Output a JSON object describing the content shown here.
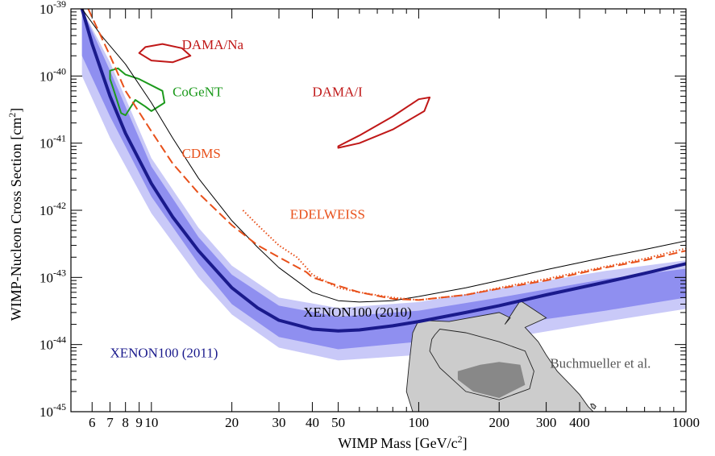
{
  "chart_data": {
    "type": "line",
    "xscale": "log",
    "yscale": "log",
    "xlim": [
      5,
      1000
    ],
    "ylim": [
      1e-45,
      1e-39
    ],
    "xlabel": {
      "main": "WIMP Mass [GeV/c",
      "sup": "2",
      "end": "]"
    },
    "ylabel": {
      "main": "WIMP-Nucleon Cross Section [cm",
      "sup": "2",
      "end": "]"
    },
    "x_ticks": [
      {
        "value": 6,
        "label": "6"
      },
      {
        "value": 7,
        "label": "7"
      },
      {
        "value": 8,
        "label": "8"
      },
      {
        "value": 9,
        "label": "9"
      },
      {
        "value": 10,
        "label": "10"
      },
      {
        "value": 20,
        "label": "20"
      },
      {
        "value": 30,
        "label": "30"
      },
      {
        "value": 40,
        "label": "40"
      },
      {
        "value": 50,
        "label": "50"
      },
      {
        "value": 100,
        "label": "100"
      },
      {
        "value": 200,
        "label": "200"
      },
      {
        "value": 300,
        "label": "300"
      },
      {
        "value": 400,
        "label": "400"
      },
      {
        "value": 1000,
        "label": "1000"
      }
    ],
    "y_ticks": [
      {
        "value": 1e-45,
        "base": "10",
        "exp": "-45"
      },
      {
        "value": 1e-44,
        "base": "10",
        "exp": "-44"
      },
      {
        "value": 1e-43,
        "base": "10",
        "exp": "-43"
      },
      {
        "value": 1e-42,
        "base": "10",
        "exp": "-42"
      },
      {
        "value": 1e-41,
        "base": "10",
        "exp": "-41"
      },
      {
        "value": 1e-40,
        "base": "10",
        "exp": "-40"
      },
      {
        "value": 1e-39,
        "base": "10",
        "exp": "-39"
      }
    ],
    "colors": {
      "xenon2011": "#1a1a8c",
      "band_1sigma": "#8f8ff0",
      "band_2sigma": "#c9c9f8",
      "xenon2010": "#000000",
      "cdms": "#e8501a",
      "edelweiss": "#e8501a",
      "dama": "#c01818",
      "cogent": "#1c9a1c",
      "buchmueller_light": "#cccccc",
      "buchmueller_dark": "#888888"
    },
    "series": [
      {
        "name": "XENON100 (2011)",
        "style": "thick-line",
        "points": [
          [
            5.5,
            1e-39
          ],
          [
            6,
            3e-40
          ],
          [
            7,
            5e-41
          ],
          [
            8,
            1.4e-41
          ],
          [
            10,
            2.5e-42
          ],
          [
            12,
            8e-43
          ],
          [
            15,
            2.5e-43
          ],
          [
            20,
            7e-44
          ],
          [
            25,
            3.5e-44
          ],
          [
            30,
            2.3e-44
          ],
          [
            40,
            1.7e-44
          ],
          [
            50,
            1.6e-44
          ],
          [
            60,
            1.65e-44
          ],
          [
            80,
            1.9e-44
          ],
          [
            100,
            2.2e-44
          ],
          [
            150,
            3e-44
          ],
          [
            200,
            3.8e-44
          ],
          [
            300,
            5.5e-44
          ],
          [
            500,
            8.5e-44
          ],
          [
            700,
            1.15e-43
          ],
          [
            1000,
            1.6e-43
          ]
        ]
      },
      {
        "name": "XENON100 (2010)",
        "style": "thin-line",
        "points": [
          [
            5.5,
            1e-39
          ],
          [
            6.5,
            4e-40
          ],
          [
            8,
            1.5e-40
          ],
          [
            10,
            4e-41
          ],
          [
            12,
            1.2e-41
          ],
          [
            15,
            3e-42
          ],
          [
            20,
            7e-43
          ],
          [
            25,
            2.8e-43
          ],
          [
            30,
            1.4e-43
          ],
          [
            40,
            6e-44
          ],
          [
            50,
            4.5e-44
          ],
          [
            60,
            4.3e-44
          ],
          [
            80,
            4.5e-44
          ],
          [
            100,
            5.2e-44
          ],
          [
            150,
            7e-44
          ],
          [
            200,
            9e-44
          ],
          [
            300,
            1.3e-43
          ],
          [
            500,
            2e-43
          ],
          [
            700,
            2.6e-43
          ],
          [
            1000,
            3.5e-43
          ]
        ]
      },
      {
        "name": "CDMS",
        "style": "dashed",
        "points": [
          [
            5.8,
            1e-39
          ],
          [
            7,
            2e-40
          ],
          [
            8,
            6e-41
          ],
          [
            10,
            1.5e-41
          ],
          [
            12,
            5e-42
          ],
          [
            15,
            1.8e-42
          ],
          [
            20,
            6e-43
          ],
          [
            25,
            3e-43
          ],
          [
            30,
            2e-43
          ],
          [
            38,
            1.2e-43
          ],
          [
            40,
            1e-43
          ],
          [
            50,
            7.5e-44
          ],
          [
            60,
            6e-44
          ],
          [
            80,
            4.8e-44
          ],
          [
            100,
            4.6e-44
          ],
          [
            150,
            5.5e-44
          ],
          [
            200,
            6.8e-44
          ],
          [
            300,
            9e-44
          ],
          [
            500,
            1.4e-43
          ],
          [
            700,
            1.8e-43
          ],
          [
            1000,
            2.5e-43
          ]
        ]
      },
      {
        "name": "EDELWEISS",
        "style": "dotted",
        "points": [
          [
            22,
            1e-42
          ],
          [
            25,
            6e-43
          ],
          [
            30,
            3e-43
          ],
          [
            35,
            2e-43
          ],
          [
            38,
            1.4e-43
          ],
          [
            40,
            1.1e-43
          ],
          [
            50,
            7e-44
          ],
          [
            60,
            6e-44
          ],
          [
            80,
            5e-44
          ],
          [
            100,
            4.6e-44
          ],
          [
            150,
            5.5e-44
          ],
          [
            200,
            7e-44
          ],
          [
            300,
            9.5e-44
          ],
          [
            500,
            1.45e-43
          ],
          [
            700,
            1.9e-43
          ],
          [
            1000,
            2.7e-43
          ]
        ]
      }
    ],
    "bands": {
      "inner": {
        "lower": [
          [
            5.5,
            2e-40
          ],
          [
            7,
            2.5e-41
          ],
          [
            10,
            1.6e-42
          ],
          [
            15,
            1.6e-43
          ],
          [
            20,
            4e-44
          ],
          [
            30,
            1.3e-44
          ],
          [
            50,
            8.5e-45
          ],
          [
            100,
            1.1e-44
          ],
          [
            200,
            1.9e-44
          ],
          [
            500,
            3.2e-44
          ],
          [
            1000,
            5e-44
          ]
        ],
        "upper": [
          [
            5.5,
            1e-39
          ],
          [
            7,
            1.2e-40
          ],
          [
            10,
            4.5e-42
          ],
          [
            15,
            4e-43
          ],
          [
            20,
            1.1e-43
          ],
          [
            30,
            3.8e-44
          ],
          [
            50,
            2.6e-44
          ],
          [
            100,
            3.2e-44
          ],
          [
            200,
            5e-44
          ],
          [
            500,
            9.5e-44
          ],
          [
            1000,
            1.35e-43
          ]
        ]
      },
      "outer": {
        "lower": [
          [
            5.5,
            1e-40
          ],
          [
            7,
            1.2e-41
          ],
          [
            10,
            9e-43
          ],
          [
            15,
            1e-43
          ],
          [
            20,
            2.8e-44
          ],
          [
            30,
            9e-45
          ],
          [
            50,
            5.8e-45
          ],
          [
            100,
            7e-45
          ],
          [
            200,
            1.2e-44
          ],
          [
            500,
            2.2e-44
          ],
          [
            1000,
            3.4e-44
          ]
        ],
        "upper": [
          [
            5.5,
            1e-39
          ],
          [
            7,
            1.6e-40
          ],
          [
            10,
            6e-42
          ],
          [
            15,
            5.5e-43
          ],
          [
            20,
            1.5e-43
          ],
          [
            30,
            5e-44
          ],
          [
            50,
            3.5e-44
          ],
          [
            100,
            4.3e-44
          ],
          [
            200,
            6.8e-44
          ],
          [
            500,
            1.25e-43
          ],
          [
            1000,
            1.8e-43
          ]
        ]
      }
    },
    "regions": [
      {
        "name": "DAMA/Na",
        "closed": true,
        "points": [
          [
            9,
            2.2e-40
          ],
          [
            9.5,
            2.7e-40
          ],
          [
            11,
            3e-40
          ],
          [
            13,
            2.6e-40
          ],
          [
            14,
            2e-40
          ],
          [
            12,
            1.6e-40
          ],
          [
            10,
            1.7e-40
          ]
        ]
      },
      {
        "name": "DAMA/I",
        "closed": true,
        "points": [
          [
            50,
            9e-42
          ],
          [
            60,
            1.3e-41
          ],
          [
            80,
            2.5e-41
          ],
          [
            100,
            4.5e-41
          ],
          [
            110,
            4.8e-41
          ],
          [
            105,
            3e-41
          ],
          [
            80,
            1.6e-41
          ],
          [
            60,
            1e-41
          ],
          [
            50,
            8.5e-42
          ]
        ]
      },
      {
        "name": "CoGeNT",
        "closed": true,
        "points": [
          [
            7,
            1.2e-40
          ],
          [
            7.5,
            1.3e-40
          ],
          [
            8,
            1.05e-40
          ],
          [
            9,
            9e-41
          ],
          [
            11,
            6e-41
          ],
          [
            11.2,
            4e-41
          ],
          [
            10,
            3e-41
          ],
          [
            9.5,
            3.5e-41
          ],
          [
            8.7,
            4.4e-41
          ],
          [
            8,
            2.6e-41
          ],
          [
            7.7,
            2.8e-41
          ],
          [
            7.2,
            6.5e-41
          ],
          [
            7,
            9e-41
          ]
        ]
      },
      {
        "name": "Buchmueller et al.",
        "role": "light",
        "closed": true,
        "points": [
          [
            95,
            1e-45
          ],
          [
            90,
            2e-45
          ],
          [
            92,
            5e-45
          ],
          [
            95,
            1.5e-44
          ],
          [
            100,
            2.3e-44
          ],
          [
            130,
            2.2e-44
          ],
          [
            200,
            3e-44
          ],
          [
            220,
            2.5e-44
          ],
          [
            210,
            2e-44
          ],
          [
            230,
            3.5e-44
          ],
          [
            240,
            4.5e-44
          ],
          [
            280,
            3e-44
          ],
          [
            300,
            2.5e-44
          ],
          [
            250,
            1.8e-44
          ],
          [
            280,
            1.1e-44
          ],
          [
            300,
            7e-45
          ],
          [
            330,
            4e-45
          ],
          [
            370,
            2.5e-45
          ],
          [
            400,
            1.8e-45
          ],
          [
            430,
            1.2e-45
          ],
          [
            450,
            1e-45
          ]
        ]
      },
      {
        "name": "",
        "role": "dark",
        "closed": true,
        "points": [
          [
            140,
            4e-45
          ],
          [
            170,
            5e-45
          ],
          [
            200,
            5.5e-45
          ],
          [
            240,
            5e-45
          ],
          [
            250,
            2.5e-45
          ],
          [
            200,
            1.6e-45
          ],
          [
            160,
            2e-45
          ],
          [
            140,
            3e-45
          ]
        ]
      },
      {
        "name": "",
        "role": "outline",
        "closed": true,
        "points": [
          [
            115,
            1.4e-44
          ],
          [
            120,
            1.7e-44
          ],
          [
            150,
            1.5e-44
          ],
          [
            200,
            1.1e-44
          ],
          [
            250,
            8e-45
          ],
          [
            270,
            4e-45
          ],
          [
            260,
            2.2e-45
          ],
          [
            200,
            1.5e-45
          ],
          [
            150,
            2e-45
          ],
          [
            120,
            4.5e-45
          ],
          [
            110,
            8e-45
          ],
          [
            112,
            1.2e-44
          ]
        ]
      },
      {
        "name": "",
        "role": "small",
        "closed": true,
        "points": [
          [
            440,
            1.3e-45
          ],
          [
            445,
            1.15e-45
          ],
          [
            455,
            1.1e-45
          ],
          [
            460,
            1.2e-45
          ],
          [
            450,
            1.3e-45
          ]
        ]
      }
    ],
    "annotations": [
      {
        "text": "DAMA/Na",
        "x": 13,
        "y": 2.5e-40,
        "colorKey": "dama",
        "anchor": "start"
      },
      {
        "text": "CoGeNT",
        "x": 12,
        "y": 5e-41,
        "colorKey": "cogent",
        "anchor": "start"
      },
      {
        "text": "DAMA/I",
        "x": 40,
        "y": 5e-41,
        "colorKey": "dama",
        "anchor": "start"
      },
      {
        "text": "CDMS",
        "x": 13,
        "y": 6e-42,
        "colorKey": "cdms",
        "anchor": "start"
      },
      {
        "text": "EDELWEISS",
        "x": 33,
        "y": 7.5e-43,
        "colorKey": "edelweiss",
        "anchor": "start"
      },
      {
        "text": "XENON100 (2010)",
        "x": 37,
        "y": 2.6e-44,
        "colorKey": "xenon2010",
        "anchor": "start"
      },
      {
        "text": "XENON100 (2011)",
        "x": 7,
        "y": 6.5e-45,
        "colorKey": "xenon2011",
        "anchor": "start"
      },
      {
        "text": "Buchmueller et al.",
        "x": 310,
        "y": 4.5e-45,
        "colorKey": "buchmueller_text",
        "anchor": "start"
      }
    ],
    "text_colors": {
      "buchmueller_text": "#555555"
    }
  }
}
